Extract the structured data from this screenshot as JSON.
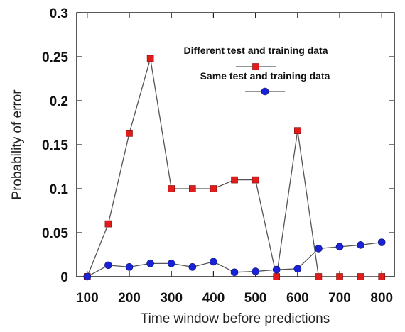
{
  "chart_data": {
    "type": "line",
    "title": "",
    "xlabel": "Time window before predictions",
    "ylabel": "Probability of error",
    "xlim": [
      75,
      830
    ],
    "ylim": [
      0,
      0.3
    ],
    "x_ticks": [
      100,
      200,
      300,
      400,
      500,
      600,
      700,
      800
    ],
    "x_tick_labels": [
      "100",
      "200",
      "300",
      "400",
      "500",
      "600",
      "700",
      "800"
    ],
    "y_ticks": [
      0,
      0.05,
      0.1,
      0.15,
      0.2,
      0.25,
      0.3
    ],
    "y_tick_labels": [
      "0",
      "0.05",
      "0.1",
      "0.15",
      "0.2",
      "0.25",
      "0.3"
    ],
    "grid": false,
    "legend_position": "top-right",
    "series": [
      {
        "name": "Different test and training data",
        "marker": "square",
        "color": "#e21b1b",
        "line_color": "#555555",
        "x": [
          100,
          150,
          200,
          250,
          300,
          350,
          400,
          450,
          500,
          550,
          600,
          650,
          700,
          750,
          800
        ],
        "values": [
          0,
          0.06,
          0.163,
          0.248,
          0.1,
          0.1,
          0.1,
          0.11,
          0.11,
          0,
          0.166,
          0,
          0,
          0,
          0
        ]
      },
      {
        "name": "Same test and training data",
        "marker": "circle",
        "color": "#1a22d8",
        "line_color": "#555555",
        "x": [
          100,
          150,
          200,
          250,
          300,
          350,
          400,
          450,
          500,
          550,
          600,
          650,
          700,
          750,
          800
        ],
        "values": [
          0,
          0.013,
          0.011,
          0.015,
          0.015,
          0.011,
          0.017,
          0.005,
          0.006,
          0.008,
          0.009,
          0.032,
          0.034,
          0.036,
          0.039
        ]
      }
    ]
  }
}
